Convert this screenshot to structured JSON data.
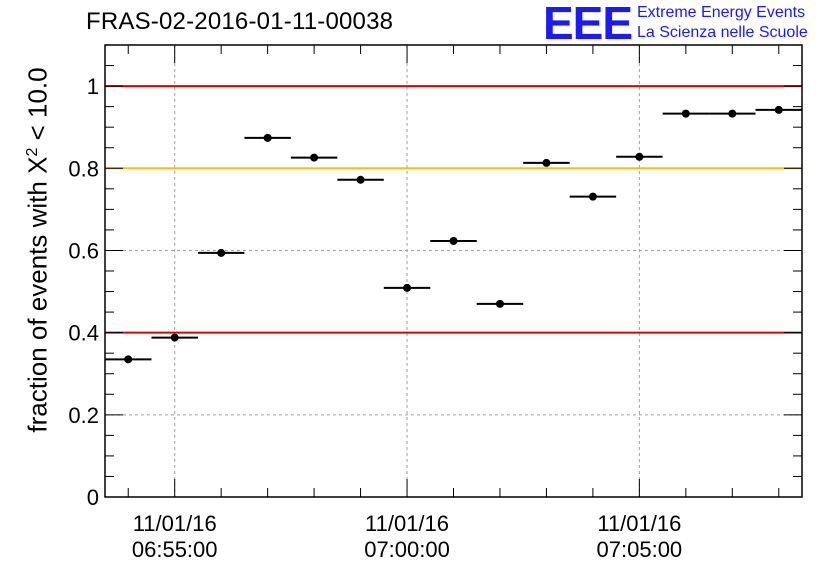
{
  "header": {
    "title": "FRAS-02-2016-01-11-00038",
    "logo_text": "EEE",
    "logo_line1": "Extreme Energy Events",
    "logo_line2": "La Scienza nelle Scuole"
  },
  "chart_data": {
    "type": "scatter",
    "ylabel_prefix": "fraction of events with X",
    "ylabel_sup": "2",
    "ylabel_suffix": " < 10.0",
    "xlabel": "",
    "ylim": [
      0,
      1.1
    ],
    "yticks": [
      "0",
      "0.2",
      "0.4",
      "0.6",
      "0.8",
      "1"
    ],
    "ytick_values": [
      0,
      0.2,
      0.4,
      0.6,
      0.8,
      1.0
    ],
    "xlim_minutes": [
      -1.5,
      13.5
    ],
    "xticks": [
      {
        "minute": 0,
        "line1": "11/01/16",
        "line2": "06:55:00"
      },
      {
        "minute": 5,
        "line1": "11/01/16",
        "line2": "07:00:00"
      },
      {
        "minute": 10,
        "line1": "11/01/16",
        "line2": "07:05:00"
      }
    ],
    "grid": true,
    "reference_lines": [
      {
        "y": 1.0,
        "color": "#e00000"
      },
      {
        "y": 0.8,
        "color": "#ffc000"
      },
      {
        "y": 0.4,
        "color": "#e00000"
      }
    ],
    "points": [
      {
        "x": -1.0,
        "y": 0.335
      },
      {
        "x": 0.0,
        "y": 0.388
      },
      {
        "x": 1.0,
        "y": 0.594
      },
      {
        "x": 2.0,
        "y": 0.874
      },
      {
        "x": 3.0,
        "y": 0.826
      },
      {
        "x": 4.0,
        "y": 0.772
      },
      {
        "x": 5.0,
        "y": 0.509
      },
      {
        "x": 6.0,
        "y": 0.623
      },
      {
        "x": 7.0,
        "y": 0.47
      },
      {
        "x": 8.0,
        "y": 0.813
      },
      {
        "x": 9.0,
        "y": 0.731
      },
      {
        "x": 10.0,
        "y": 0.828
      },
      {
        "x": 11.0,
        "y": 0.933
      },
      {
        "x": 12.0,
        "y": 0.933
      },
      {
        "x": 13.0,
        "y": 0.942
      }
    ],
    "x_half_width_minutes": 0.5
  }
}
